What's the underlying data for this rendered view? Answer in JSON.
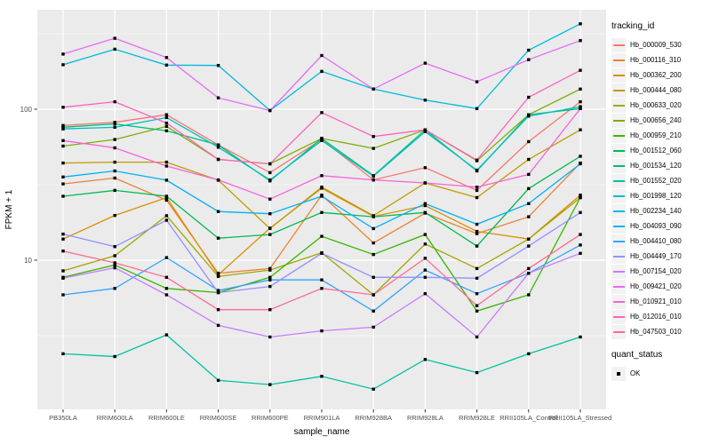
{
  "colors": {
    "panel_bg": "#EBEBEB",
    "grid": "#FFFFFF",
    "legend_key_bg": "#F2F2F2",
    "axis_text": "#4D4D4D",
    "title_text": "#000000",
    "point": "#000000"
  },
  "chart_data": {
    "type": "line",
    "title": "",
    "xlabel": "sample_name",
    "ylabel": "FPKM + 1",
    "y_scale": "log10",
    "grid": true,
    "legend_position": "right",
    "legend_title": "tracking_id",
    "quant_legend": {
      "title": "quant_status",
      "items": [
        "OK"
      ]
    },
    "point_shape": "filled-black-square",
    "y_ticks": [
      {
        "value": 100,
        "label": "100"
      },
      {
        "value": 10,
        "label": "10"
      }
    ],
    "y_minor_gridlines": [
      3.162,
      31.62,
      316.2
    ],
    "ylim_log_range": [
      1.03,
      455
    ],
    "categories": [
      "PB350LA",
      "RRIM600LA",
      "RRIM600LE",
      "RRIM600SE",
      "RRIM600PE",
      "RRIM901LA",
      "RRIM928BA",
      "RRIM928LA",
      "RRIM928LE",
      "RRII105LA_Control",
      "RRII105LA_Stressed"
    ],
    "series": [
      {
        "name": "Hb_000009_530",
        "color": "#F8766D",
        "values": [
          78,
          82,
          92,
          58,
          38,
          63,
          34,
          41,
          29,
          61,
          112
        ]
      },
      {
        "name": "Hb_000116_310",
        "color": "#EA8331",
        "values": [
          32,
          35,
          25,
          8.2,
          8.8,
          27,
          13,
          20.5,
          15,
          19.4,
          44
        ]
      },
      {
        "name": "Hb_000362_200",
        "color": "#D89000",
        "values": [
          13.8,
          19.8,
          26,
          8,
          16.3,
          30,
          19.5,
          23,
          15.5,
          13.8,
          27
        ]
      },
      {
        "name": "Hb_000444_080",
        "color": "#C09B00",
        "values": [
          44,
          44.6,
          44.6,
          33.9,
          16.2,
          30.5,
          19.7,
          32.5,
          26,
          46.5,
          73
        ]
      },
      {
        "name": "Hb_000633_020",
        "color": "#A3A500",
        "values": [
          8.5,
          10.7,
          19.7,
          7.8,
          8.6,
          11.2,
          5.9,
          12.8,
          8.8,
          13.8,
          26
        ]
      },
      {
        "name": "Hb_000656_240",
        "color": "#7CAE00",
        "values": [
          57,
          63,
          77,
          46.5,
          43.5,
          64,
          55,
          73,
          45.6,
          92,
          136
        ]
      },
      {
        "name": "Hb_000959_210",
        "color": "#39B600",
        "values": [
          7.7,
          9.3,
          6.5,
          6.1,
          7.7,
          14.4,
          10.9,
          14.8,
          4.6,
          5.9,
          26
        ]
      },
      {
        "name": "Hb_001512_060",
        "color": "#00BB4E",
        "values": [
          26.5,
          29,
          26.5,
          14,
          14.8,
          20.7,
          19.4,
          20.7,
          12.4,
          29.8,
          48.8
        ]
      },
      {
        "name": "Hb_001534_120",
        "color": "#00BF7D",
        "values": [
          76,
          80,
          72,
          58,
          33.5,
          64,
          36.3,
          73,
          39,
          92,
          101
        ]
      },
      {
        "name": "Hb_001552_020",
        "color": "#00C1A3",
        "values": [
          2.4,
          2.3,
          3.2,
          1.6,
          1.5,
          1.7,
          1.4,
          2.2,
          1.8,
          2.4,
          3.1
        ]
      },
      {
        "name": "Hb_001998_120",
        "color": "#00BFC4",
        "values": [
          74,
          76,
          88,
          56,
          34,
          62,
          36,
          71,
          39.5,
          90,
          104
        ]
      },
      {
        "name": "Hb_002234_140",
        "color": "#00BAE0",
        "values": [
          197,
          250,
          196,
          195,
          98,
          178,
          136,
          115,
          101,
          246,
          368
        ]
      },
      {
        "name": "Hb_004093_090",
        "color": "#00B0F6",
        "values": [
          35.6,
          39,
          33.9,
          21,
          20.3,
          26.5,
          16.2,
          23.7,
          17.3,
          23.7,
          43.5
        ]
      },
      {
        "name": "Hb_004410_080",
        "color": "#35A2FF",
        "values": [
          5.9,
          6.5,
          10.4,
          6.3,
          7.4,
          7.4,
          4.6,
          8.6,
          6,
          8.2,
          12.6
        ]
      },
      {
        "name": "Hb_004449_170",
        "color": "#9590FF",
        "values": [
          14.9,
          12.3,
          18.4,
          6.1,
          6.7,
          11.1,
          7.7,
          7.7,
          7.6,
          12.4,
          20.7
        ]
      },
      {
        "name": "Hb_007154_020",
        "color": "#C77CFF",
        "values": [
          7.6,
          8.9,
          5.9,
          3.7,
          3.1,
          3.4,
          3.6,
          6,
          3.1,
          8.2,
          11.1
        ]
      },
      {
        "name": "Hb_009421_020",
        "color": "#E76BF3",
        "values": [
          232,
          295,
          220,
          119,
          98,
          227,
          136,
          202,
          152,
          213,
          285
        ]
      },
      {
        "name": "Hb_010921_010",
        "color": "#FA62DB",
        "values": [
          62,
          55.5,
          42,
          34,
          25.4,
          36.3,
          34,
          32.5,
          30.5,
          37,
          101
        ]
      },
      {
        "name": "Hb_012016_010",
        "color": "#FF62BC",
        "values": [
          103,
          112,
          81,
          46.5,
          43.5,
          95,
          66,
          73,
          46,
          120,
          181
        ]
      },
      {
        "name": "Hb_047503_010",
        "color": "#FF6A98",
        "values": [
          11.5,
          9.6,
          7.7,
          4.7,
          4.7,
          6.5,
          5.9,
          10.3,
          5,
          8.8,
          14.8
        ]
      }
    ]
  }
}
